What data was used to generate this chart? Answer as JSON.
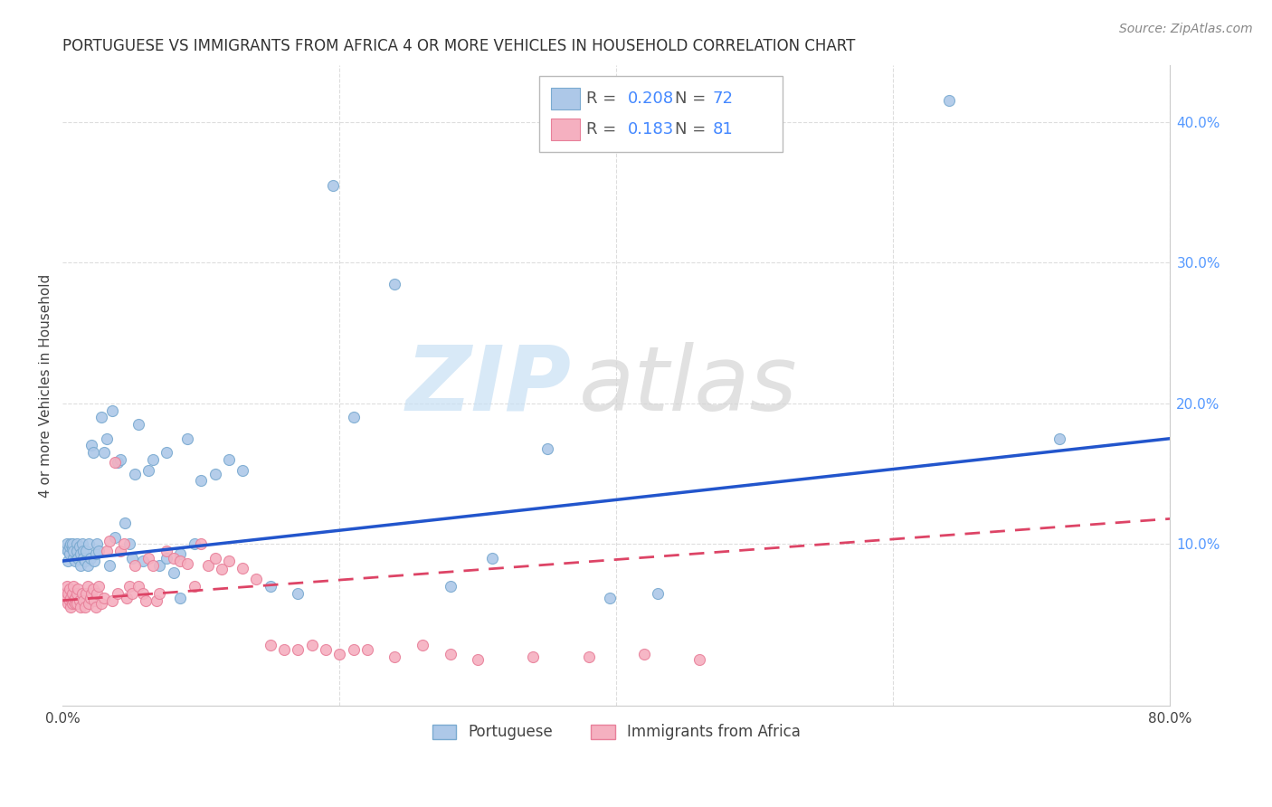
{
  "title": "PORTUGUESE VS IMMIGRANTS FROM AFRICA 4 OR MORE VEHICLES IN HOUSEHOLD CORRELATION CHART",
  "source": "Source: ZipAtlas.com",
  "ylabel": "4 or more Vehicles in Household",
  "xlim": [
    0.0,
    0.8
  ],
  "ylim": [
    -0.015,
    0.44
  ],
  "xticks": [
    0.0,
    0.2,
    0.4,
    0.6,
    0.8
  ],
  "xtick_labels": [
    "0.0%",
    "",
    "",
    "",
    "80.0%"
  ],
  "yticks": [
    0.0,
    0.1,
    0.2,
    0.3,
    0.4
  ],
  "ytick_labels_right": [
    "",
    "10.0%",
    "20.0%",
    "30.0%",
    "40.0%"
  ],
  "background_color": "#ffffff",
  "grid_color": "#dddddd",
  "series1_label": "Portuguese",
  "series2_label": "Immigrants from Africa",
  "series1_color": "#adc8e8",
  "series2_color": "#f5b0c0",
  "series1_edge": "#7aaad0",
  "series2_edge": "#e8809a",
  "trend1_color": "#2255cc",
  "trend2_color": "#dd4466",
  "trend1_dash": false,
  "trend2_dash": true,
  "R1": 0.208,
  "N1": 72,
  "R2": 0.183,
  "N2": 81,
  "trend1_x": [
    0.0,
    0.8
  ],
  "trend1_y": [
    0.088,
    0.175
  ],
  "trend2_x": [
    0.0,
    0.8
  ],
  "trend2_y": [
    0.06,
    0.118
  ],
  "series1_x": [
    0.002,
    0.003,
    0.004,
    0.004,
    0.005,
    0.005,
    0.006,
    0.007,
    0.007,
    0.008,
    0.008,
    0.009,
    0.01,
    0.01,
    0.011,
    0.012,
    0.013,
    0.013,
    0.014,
    0.015,
    0.015,
    0.016,
    0.017,
    0.018,
    0.019,
    0.02,
    0.021,
    0.022,
    0.023,
    0.024,
    0.025,
    0.026,
    0.028,
    0.03,
    0.032,
    0.034,
    0.036,
    0.038,
    0.04,
    0.042,
    0.045,
    0.048,
    0.05,
    0.052,
    0.055,
    0.058,
    0.062,
    0.065,
    0.07,
    0.075,
    0.08,
    0.085,
    0.09,
    0.095,
    0.1,
    0.11,
    0.12,
    0.13,
    0.15,
    0.17,
    0.195,
    0.21,
    0.24,
    0.28,
    0.31,
    0.35,
    0.395,
    0.43,
    0.64,
    0.72,
    0.075,
    0.085
  ],
  "series1_y": [
    0.097,
    0.1,
    0.095,
    0.088,
    0.093,
    0.098,
    0.1,
    0.097,
    0.1,
    0.09,
    0.095,
    0.088,
    0.1,
    0.095,
    0.09,
    0.098,
    0.093,
    0.085,
    0.1,
    0.095,
    0.09,
    0.088,
    0.095,
    0.085,
    0.1,
    0.09,
    0.17,
    0.165,
    0.088,
    0.093,
    0.1,
    0.095,
    0.19,
    0.165,
    0.175,
    0.085,
    0.195,
    0.105,
    0.158,
    0.16,
    0.115,
    0.1,
    0.09,
    0.15,
    0.185,
    0.088,
    0.152,
    0.16,
    0.085,
    0.09,
    0.08,
    0.093,
    0.175,
    0.1,
    0.145,
    0.15,
    0.16,
    0.152,
    0.07,
    0.065,
    0.355,
    0.19,
    0.285,
    0.07,
    0.09,
    0.168,
    0.062,
    0.065,
    0.415,
    0.175,
    0.165,
    0.062
  ],
  "series2_x": [
    0.002,
    0.003,
    0.003,
    0.004,
    0.004,
    0.005,
    0.005,
    0.006,
    0.006,
    0.007,
    0.007,
    0.008,
    0.008,
    0.009,
    0.009,
    0.01,
    0.01,
    0.011,
    0.012,
    0.013,
    0.014,
    0.015,
    0.016,
    0.017,
    0.018,
    0.019,
    0.02,
    0.021,
    0.022,
    0.023,
    0.024,
    0.025,
    0.026,
    0.028,
    0.03,
    0.032,
    0.034,
    0.036,
    0.038,
    0.04,
    0.042,
    0.044,
    0.046,
    0.048,
    0.05,
    0.052,
    0.055,
    0.058,
    0.06,
    0.062,
    0.065,
    0.068,
    0.07,
    0.075,
    0.08,
    0.085,
    0.09,
    0.095,
    0.1,
    0.105,
    0.11,
    0.115,
    0.12,
    0.13,
    0.14,
    0.15,
    0.16,
    0.17,
    0.18,
    0.19,
    0.2,
    0.21,
    0.22,
    0.24,
    0.26,
    0.28,
    0.3,
    0.34,
    0.38,
    0.42,
    0.46
  ],
  "series2_y": [
    0.065,
    0.062,
    0.07,
    0.058,
    0.065,
    0.06,
    0.068,
    0.055,
    0.062,
    0.058,
    0.065,
    0.06,
    0.07,
    0.058,
    0.062,
    0.065,
    0.058,
    0.068,
    0.06,
    0.055,
    0.065,
    0.06,
    0.055,
    0.065,
    0.07,
    0.058,
    0.062,
    0.065,
    0.068,
    0.06,
    0.055,
    0.065,
    0.07,
    0.058,
    0.062,
    0.095,
    0.102,
    0.06,
    0.158,
    0.065,
    0.095,
    0.1,
    0.062,
    0.07,
    0.065,
    0.085,
    0.07,
    0.065,
    0.06,
    0.09,
    0.085,
    0.06,
    0.065,
    0.095,
    0.09,
    0.088,
    0.086,
    0.07,
    0.1,
    0.085,
    0.09,
    0.082,
    0.088,
    0.083,
    0.075,
    0.028,
    0.025,
    0.025,
    0.028,
    0.025,
    0.022,
    0.025,
    0.025,
    0.02,
    0.028,
    0.022,
    0.018,
    0.02,
    0.02,
    0.022,
    0.018
  ],
  "marker_size": 75,
  "title_fontsize": 12,
  "axis_fontsize": 11,
  "legend_fontsize": 13
}
